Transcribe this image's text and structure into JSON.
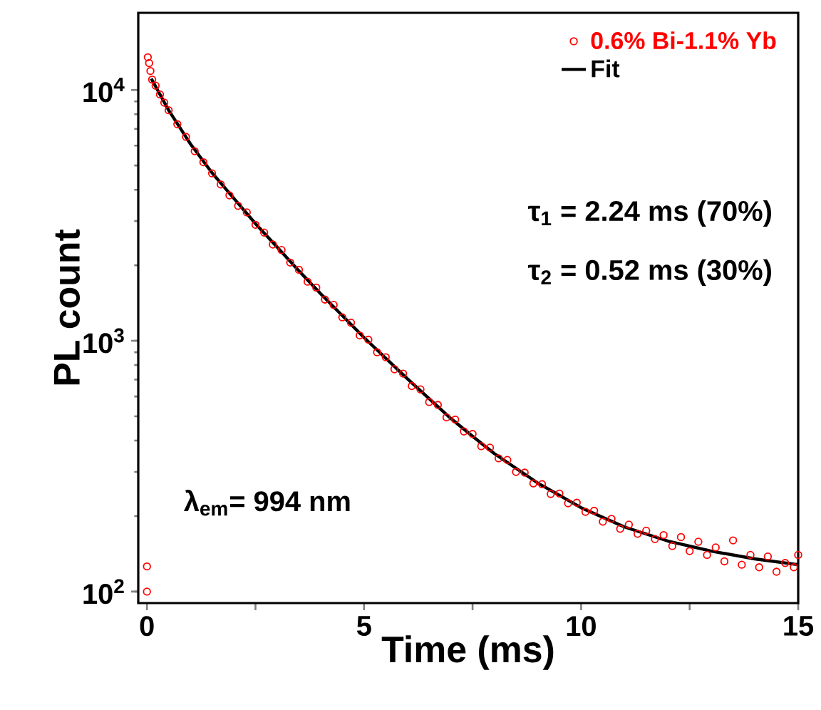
{
  "chart_data": {
    "type": "scatter",
    "xlabel": "Time (ms)",
    "ylabel": "PL count",
    "log": "y",
    "legend": "top right",
    "grid": false,
    "xlim": [
      -0.2,
      15
    ],
    "ylim": [
      90,
      20300
    ],
    "xticks": [
      0,
      {
        "value": 2.5,
        "label": null
      },
      5,
      {
        "value": 7.5,
        "label": null
      },
      10,
      {
        "value": 12.5,
        "label": null
      },
      15
    ],
    "yticks": [
      {
        "value": 100,
        "label": "10$^{2}$"
      },
      {
        "value": 1000,
        "label": "10$^{3}$"
      },
      {
        "value": 10000,
        "label": "10$^{4}$"
      }
    ],
    "annotations": [
      "τ$_{1}$ = 2.24 ms (70%)",
      "τ$_{2}$ = 0.52 ms (30%)",
      "λ$_{em}$= 994 nm"
    ],
    "series": [
      {
        "name": "0.6% Bi-1.1% Yb",
        "color": "#ff0000",
        "marker": "circle",
        "x": [
          0,
          0,
          0.02,
          0.05,
          0.08,
          0.12,
          0.2,
          0.3,
          0.4,
          0.5,
          0.7,
          0.9,
          1.1,
          1.3,
          1.5,
          1.7,
          1.9,
          2.1,
          2.3,
          2.5,
          2.7,
          2.9,
          3.1,
          3.3,
          3.5,
          3.7,
          3.9,
          4.1,
          4.3,
          4.5,
          4.7,
          4.9,
          5.1,
          5.3,
          5.5,
          5.7,
          5.9,
          6.1,
          6.3,
          6.5,
          6.7,
          6.9,
          7.1,
          7.3,
          7.5,
          7.7,
          7.9,
          8.1,
          8.3,
          8.5,
          8.7,
          8.9,
          9.1,
          9.3,
          9.5,
          9.7,
          9.9,
          10.1,
          10.3,
          10.5,
          10.7,
          10.9,
          11.1,
          11.3,
          11.5,
          11.7,
          11.9,
          12.1,
          12.3,
          12.5,
          12.7,
          12.9,
          13.1,
          13.3,
          13.5,
          13.7,
          13.9,
          14.1,
          14.3,
          14.5,
          14.7,
          14.9,
          15
        ],
        "values": [
          126,
          100,
          13500,
          12800,
          11900,
          11000,
          10400,
          9600,
          8900,
          8300,
          7300,
          6500,
          5700,
          5150,
          4650,
          4200,
          3800,
          3450,
          3250,
          2900,
          2700,
          2420,
          2300,
          2050,
          1920,
          1720,
          1630,
          1460,
          1390,
          1240,
          1180,
          1050,
          1010,
          900,
          860,
          770,
          740,
          660,
          640,
          570,
          555,
          495,
          485,
          435,
          425,
          380,
          375,
          340,
          335,
          300,
          298,
          270,
          268,
          245,
          246,
          225,
          226,
          208,
          210,
          190,
          195,
          178,
          185,
          170,
          175,
          162,
          168,
          152,
          165,
          145,
          158,
          140,
          150,
          132,
          160,
          128,
          140,
          125,
          138,
          120,
          130,
          125,
          140
        ]
      },
      {
        "name": "Fit",
        "color": "#000000",
        "type": "line",
        "marker": "none",
        "x": [
          0.1,
          0.5,
          1,
          1.5,
          2,
          2.5,
          3,
          3.5,
          4,
          4.5,
          5,
          6,
          7,
          7.5,
          8,
          9,
          10,
          11,
          12,
          13,
          14,
          15
        ],
        "values": [
          11100,
          8300,
          6100,
          4670,
          3700,
          2930,
          2360,
          1900,
          1540,
          1260,
          1030,
          705,
          490,
          416,
          355,
          271,
          216,
          181,
          159,
          145,
          135,
          128
        ]
      }
    ]
  }
}
